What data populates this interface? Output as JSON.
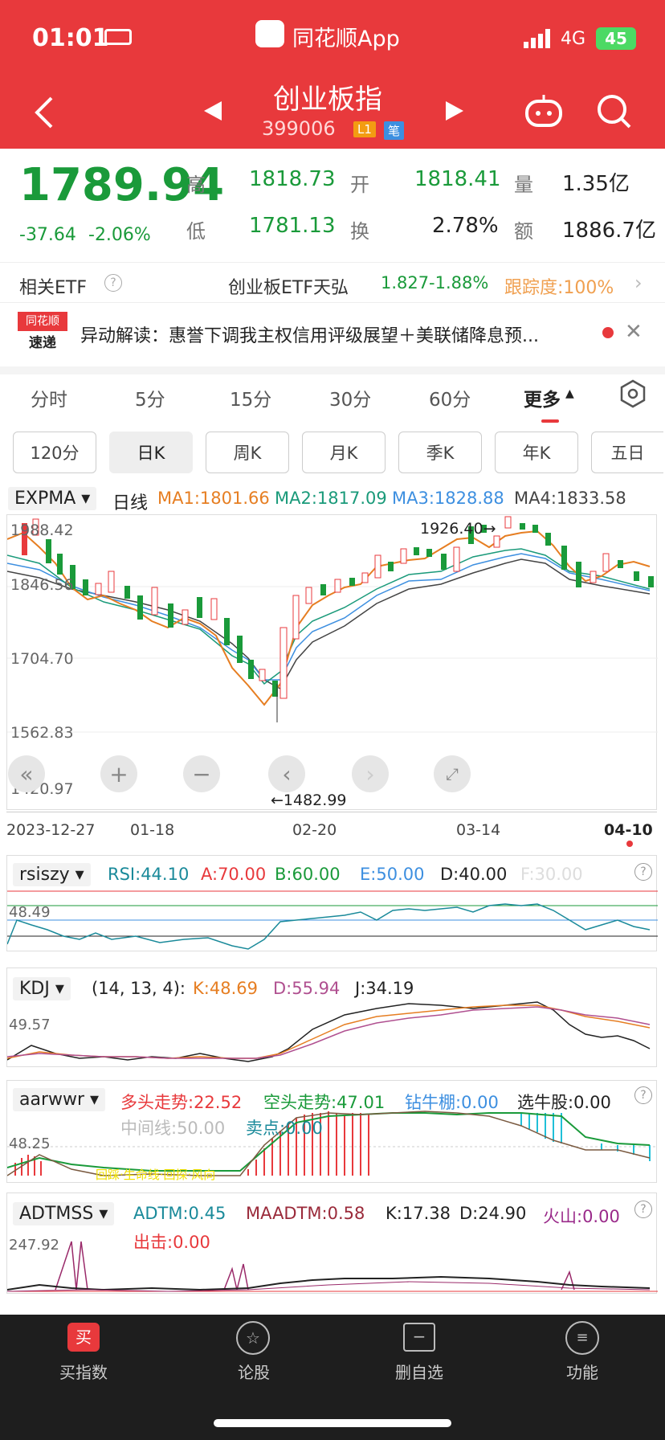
{
  "status": {
    "time": "01:01",
    "network": "4G",
    "battery": "45"
  },
  "app": {
    "name": "同花顺App"
  },
  "stock": {
    "name": "创业板指",
    "code": "399006",
    "badge1": "L1",
    "badge2": "笔"
  },
  "quote": {
    "price": "1789.94",
    "change": "-37.64",
    "change_pct": "-2.06%",
    "high_label": "高",
    "high": "1818.73",
    "open_label": "开",
    "open": "1818.41",
    "vol_label": "量",
    "vol": "1.35亿",
    "low_label": "低",
    "low": "1781.13",
    "turn_label": "换",
    "turn": "2.78%",
    "amt_label": "额",
    "amt": "1886.7亿"
  },
  "etf": {
    "label": "相关ETF",
    "name": "创业板ETF天弘",
    "price": "1.827",
    "pct": "-1.88%",
    "track": "跟踪度:100%"
  },
  "news": {
    "logo1": "同花顺",
    "logo2": "速递",
    "text": "异动解读：惠誉下调我主权信用评级展望＋美联储降息预..."
  },
  "tabs": [
    "分时",
    "5分",
    "15分",
    "30分",
    "60分",
    "更多"
  ],
  "periods": [
    "120分",
    "日K",
    "周K",
    "月K",
    "季K",
    "年K",
    "五日"
  ],
  "main_chart": {
    "indicator": "EXPMA",
    "period": "日线",
    "ma1": "MA1:1801.66",
    "ma2": "MA2:1817.09",
    "ma3": "MA3:1828.88",
    "ma4": "MA4:1833.58",
    "y_labels": [
      "1988.42",
      "1846.56",
      "1704.70",
      "1562.83",
      "1420.97"
    ],
    "high_note": "1926.40→",
    "low_note": "←1482.99",
    "x_labels": [
      "2023-12-27",
      "01-18",
      "02-20",
      "03-14",
      "04-10"
    ]
  },
  "rsi": {
    "name": "rsiszy",
    "rsi": "RSI:44.10",
    "a": "A:70.00",
    "b": "B:60.00",
    "e": "E:50.00",
    "d": "D:40.00",
    "f": "F:30.00",
    "level": "48.49"
  },
  "kdj": {
    "name": "KDJ",
    "params": "(14, 13, 4):",
    "k": "K:48.69",
    "d": "D:55.94",
    "j": "J:34.19",
    "level": "49.57"
  },
  "aar": {
    "name": "aarwwr",
    "bull": "多头走势:22.52",
    "bear": "空头走势:47.01",
    "diamond": "钻牛棚:0.00",
    "pick": "选牛股:0.00",
    "mid": "中间线:50.00",
    "sell": "卖点:0.00",
    "level": "48.25",
    "overlay": "回踩·生命线·回探·风向"
  },
  "adt": {
    "name": "ADTMSS",
    "adtm": "ADTM:0.45",
    "maadtm": "MAADTM:0.58",
    "k": "K:17.38",
    "d": "D:24.90",
    "volcano": "火山:0.00",
    "strike": "出击:0.00",
    "level": "247.92"
  },
  "nav": [
    "买指数",
    "论股",
    "删自选",
    "功能"
  ],
  "colors": {
    "header": "#e8393c",
    "up": "#e8393c",
    "down": "#1a9a3a"
  }
}
